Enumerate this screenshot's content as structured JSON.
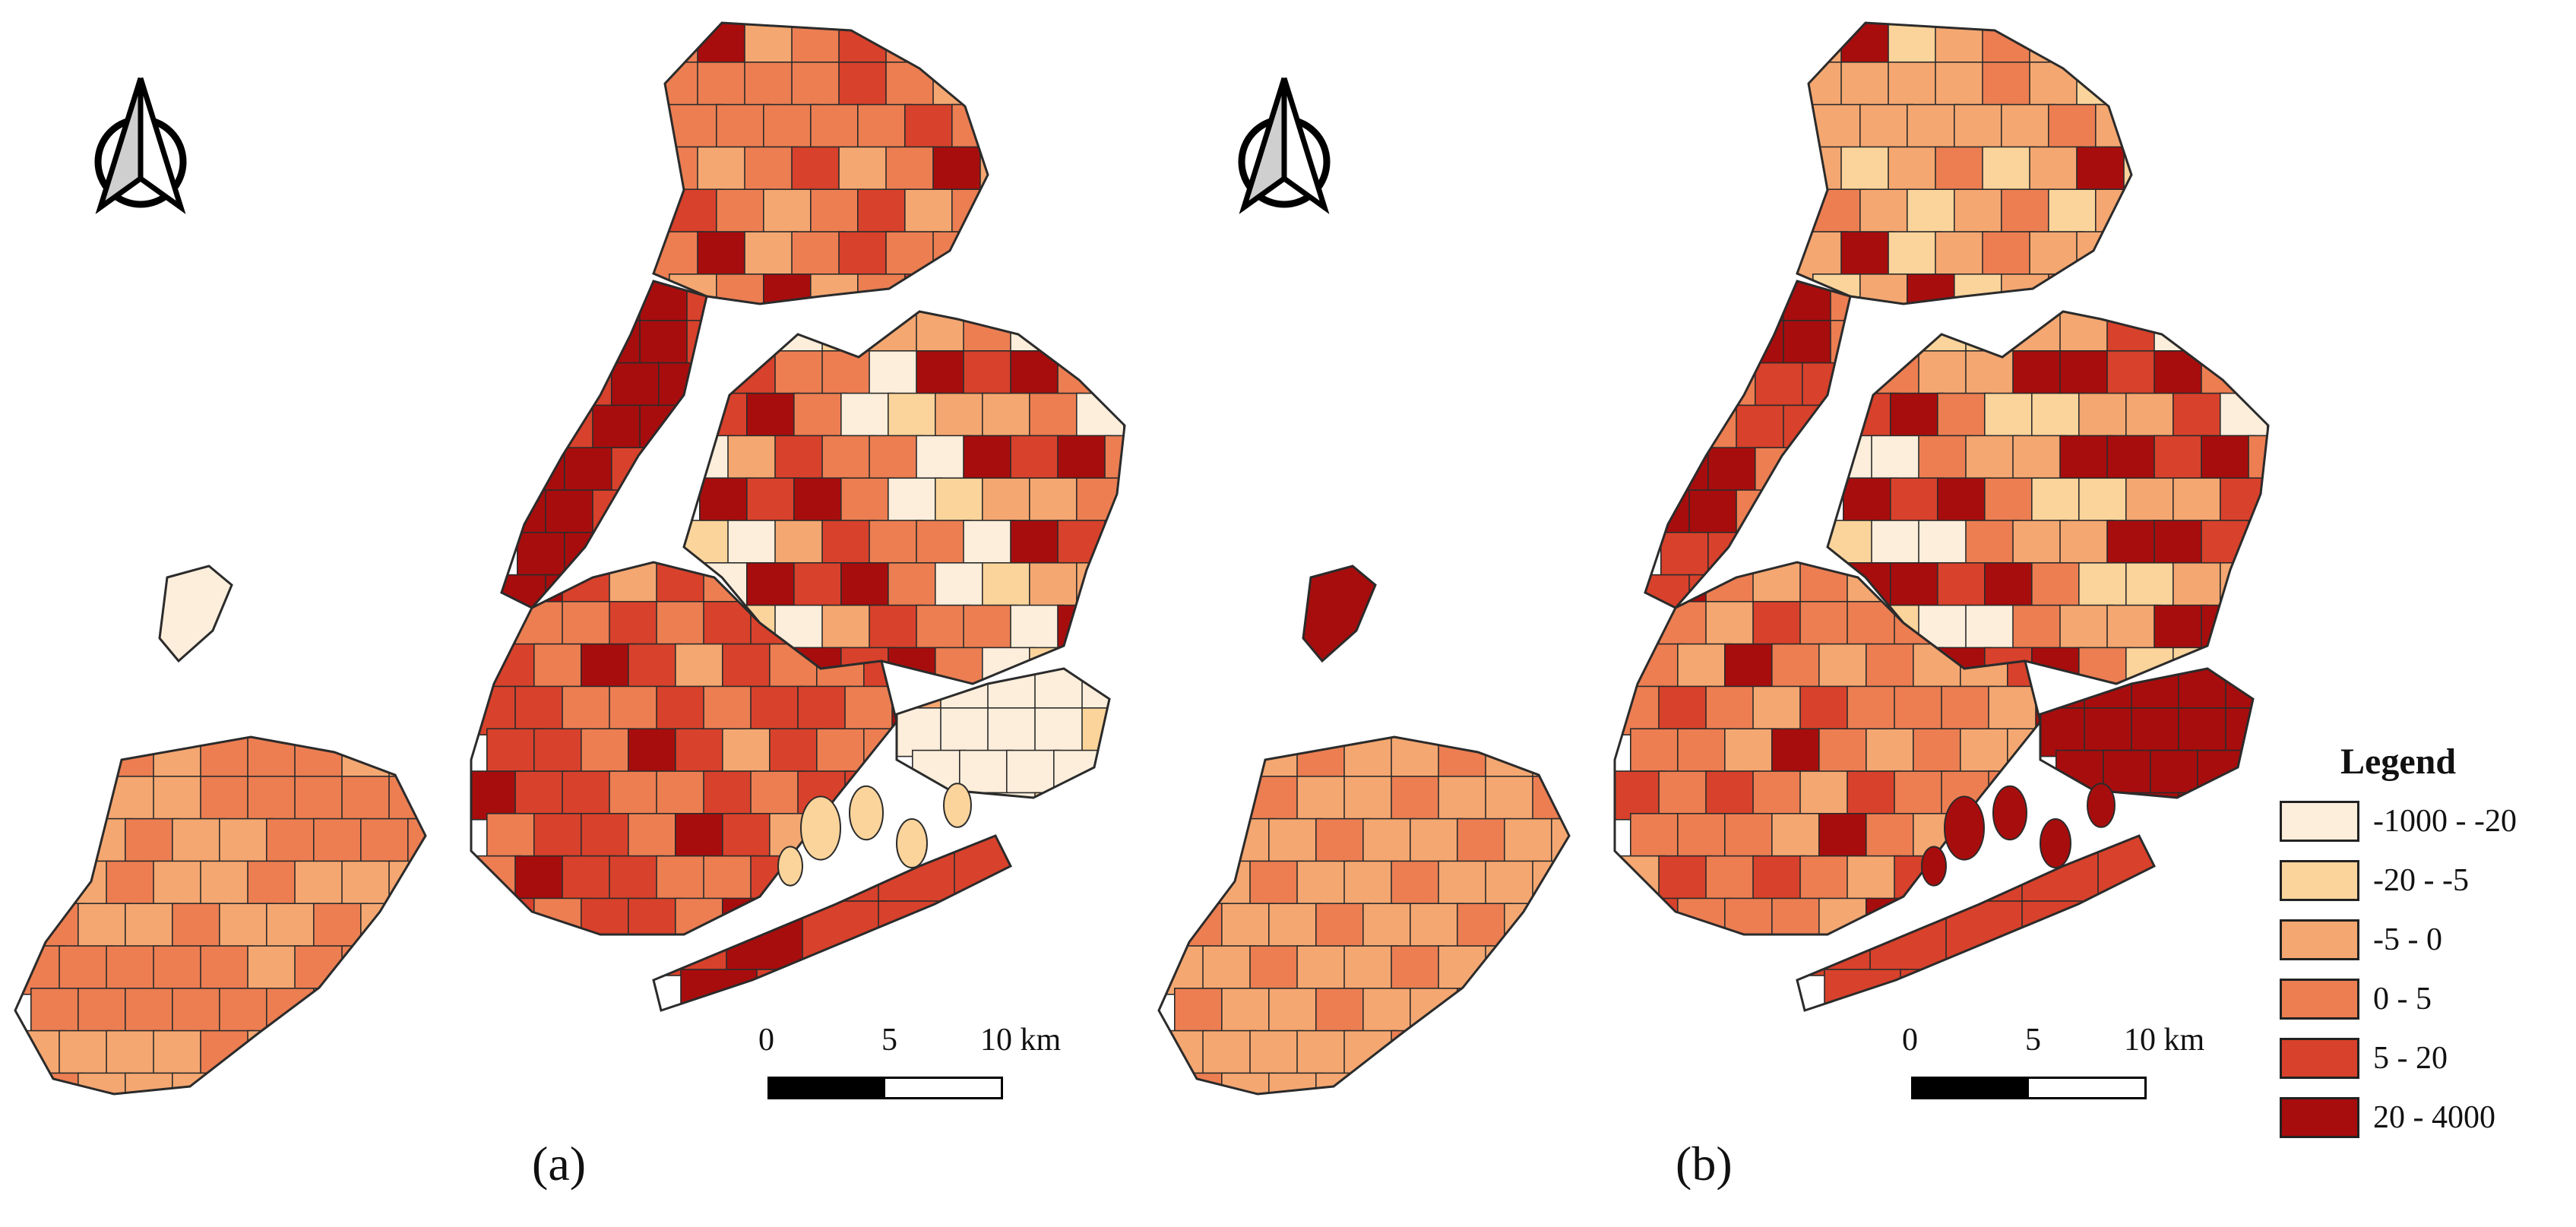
{
  "palette": {
    "c1": "#fdeedb",
    "c2": "#fbd49b",
    "c3": "#f5a771",
    "c4": "#ec7e52",
    "c5": "#d8412b",
    "c6": "#a80d0d",
    "border": "#2b2b2b"
  },
  "panels": [
    {
      "label": "(a)",
      "north_icon": "north-arrow-icon",
      "scale": {
        "labels": [
          "0",
          "5",
          "10 km"
        ]
      }
    },
    {
      "label": "(b)",
      "north_icon": "north-arrow-icon",
      "scale": {
        "labels": [
          "0",
          "5",
          "10 km"
        ]
      }
    }
  ],
  "legend": {
    "title": "Legend",
    "classes": [
      {
        "label": "-1000 - -20",
        "color": "#fdeedb"
      },
      {
        "label": "-20 - -5",
        "color": "#fbd49b"
      },
      {
        "label": "-5 - 0",
        "color": "#f5a771"
      },
      {
        "label": "0 - 5",
        "color": "#ec7e52"
      },
      {
        "label": "5 - 20",
        "color": "#d8412b"
      },
      {
        "label": "20 - 4000",
        "color": "#a80d0d"
      }
    ]
  }
}
